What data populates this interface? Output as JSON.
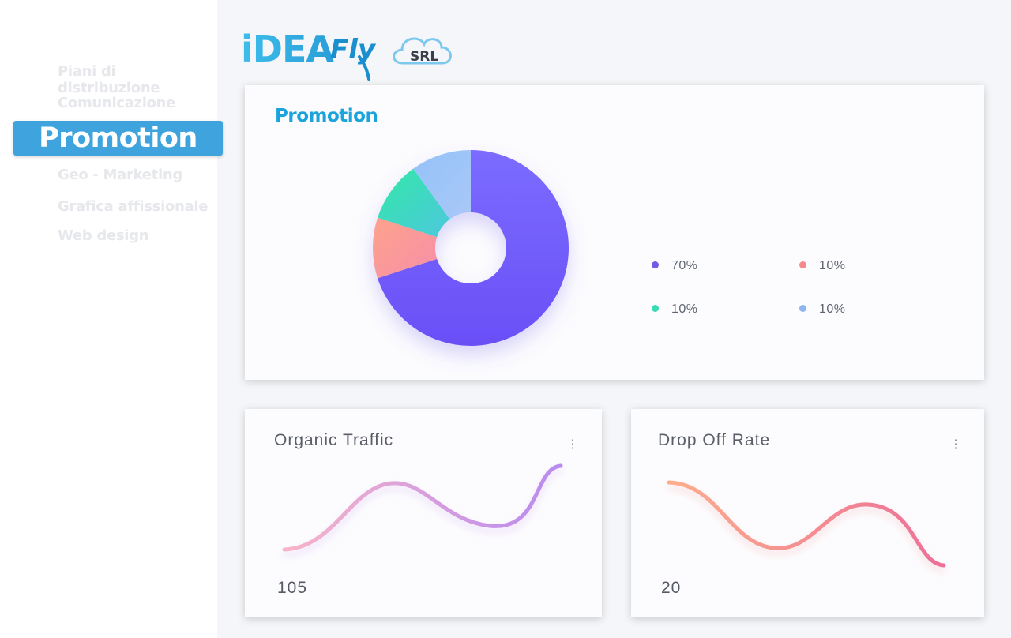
{
  "brand": {
    "logo_text_main": "iDEA",
    "logo_text_fly": "Fly",
    "logo_text_srl": "SRL"
  },
  "sidebar": {
    "items": [
      {
        "label": "Piani di distribuzione"
      },
      {
        "label": "Comunicazione"
      },
      {
        "label": "Promotion",
        "active": true
      },
      {
        "label": "Geo - Marketing"
      },
      {
        "label": "Grafica affissionale"
      },
      {
        "label": "Web design"
      }
    ]
  },
  "promotion_card": {
    "title": "Promotion",
    "legend": [
      {
        "value": "70%",
        "color": "#6c5ce7"
      },
      {
        "value": "10%",
        "color": "#f48a8a"
      },
      {
        "value": "10%",
        "color": "#39dbb5"
      },
      {
        "value": "10%",
        "color": "#8fb5ef"
      }
    ]
  },
  "organic_card": {
    "title": "Organic Traffic",
    "menu_icon": "kebab-menu-icon",
    "value": "105",
    "gradient": [
      "#f8b4c8",
      "#b98af0"
    ]
  },
  "dropoff_card": {
    "title": "Drop Off Rate",
    "menu_icon": "kebab-menu-icon",
    "value": "20",
    "gradient": [
      "#fcae8c",
      "#ec6f98"
    ]
  },
  "chart_data": {
    "type": "pie",
    "values": [
      70,
      10,
      10,
      10
    ],
    "colors": [
      "#6c5ce7",
      "#f48a8a",
      "#39dbb5",
      "#8fb5ef"
    ],
    "legend_labels": [
      "70%",
      "10%",
      "10%",
      "10%"
    ]
  }
}
